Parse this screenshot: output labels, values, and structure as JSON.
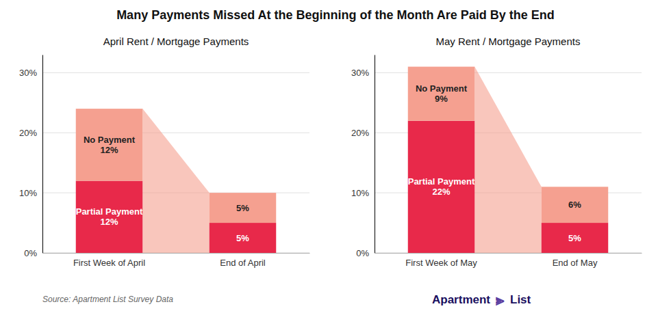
{
  "title": "Many Payments Missed At the Beginning of the Month Are Paid By the End",
  "annotations": [
    "Source: Apartment List Survey Data",
    "Apartment",
    "⫸",
    "List"
  ],
  "chart_data": [
    {
      "type": "bar",
      "stacked": true,
      "grid": true,
      "data_labels": true,
      "subtitle": "April Rent / Mortgage Payments",
      "categories": [
        "First Week of April",
        "End of April"
      ],
      "series": [
        {
          "name": "Partial Payment",
          "color": "#E8294A",
          "values": [
            12,
            5
          ],
          "value_labels": [
            "Partial Payment\n12%",
            "5%"
          ]
        },
        {
          "name": "No Payment",
          "color": "#F5A090",
          "values": [
            12,
            5
          ],
          "value_labels": [
            "No Payment\n12%",
            "5%"
          ]
        }
      ],
      "ylim": [
        0,
        33
      ],
      "yticks": [
        {
          "value": 0,
          "label": "0%"
        },
        {
          "value": 10,
          "label": "10%"
        },
        {
          "value": 20,
          "label": "20%"
        },
        {
          "value": 30,
          "label": "30%"
        }
      ]
    },
    {
      "type": "bar",
      "stacked": true,
      "grid": true,
      "data_labels": true,
      "subtitle": "May Rent / Mortgage Payments",
      "categories": [
        "First Week of May",
        "End of May"
      ],
      "series": [
        {
          "name": "Partial Payment",
          "color": "#E8294A",
          "values": [
            22,
            5
          ],
          "value_labels": [
            "Partial Payment\n22%",
            "5%"
          ]
        },
        {
          "name": "No Payment",
          "color": "#F5A090",
          "values": [
            9,
            6
          ],
          "value_labels": [
            "No Payment\n9%",
            "6%"
          ]
        }
      ],
      "ylim": [
        0,
        33
      ],
      "yticks": [
        {
          "value": 0,
          "label": "0%"
        },
        {
          "value": 10,
          "label": "10%"
        },
        {
          "value": 20,
          "label": "20%"
        },
        {
          "value": 30,
          "label": "30%"
        }
      ]
    }
  ]
}
